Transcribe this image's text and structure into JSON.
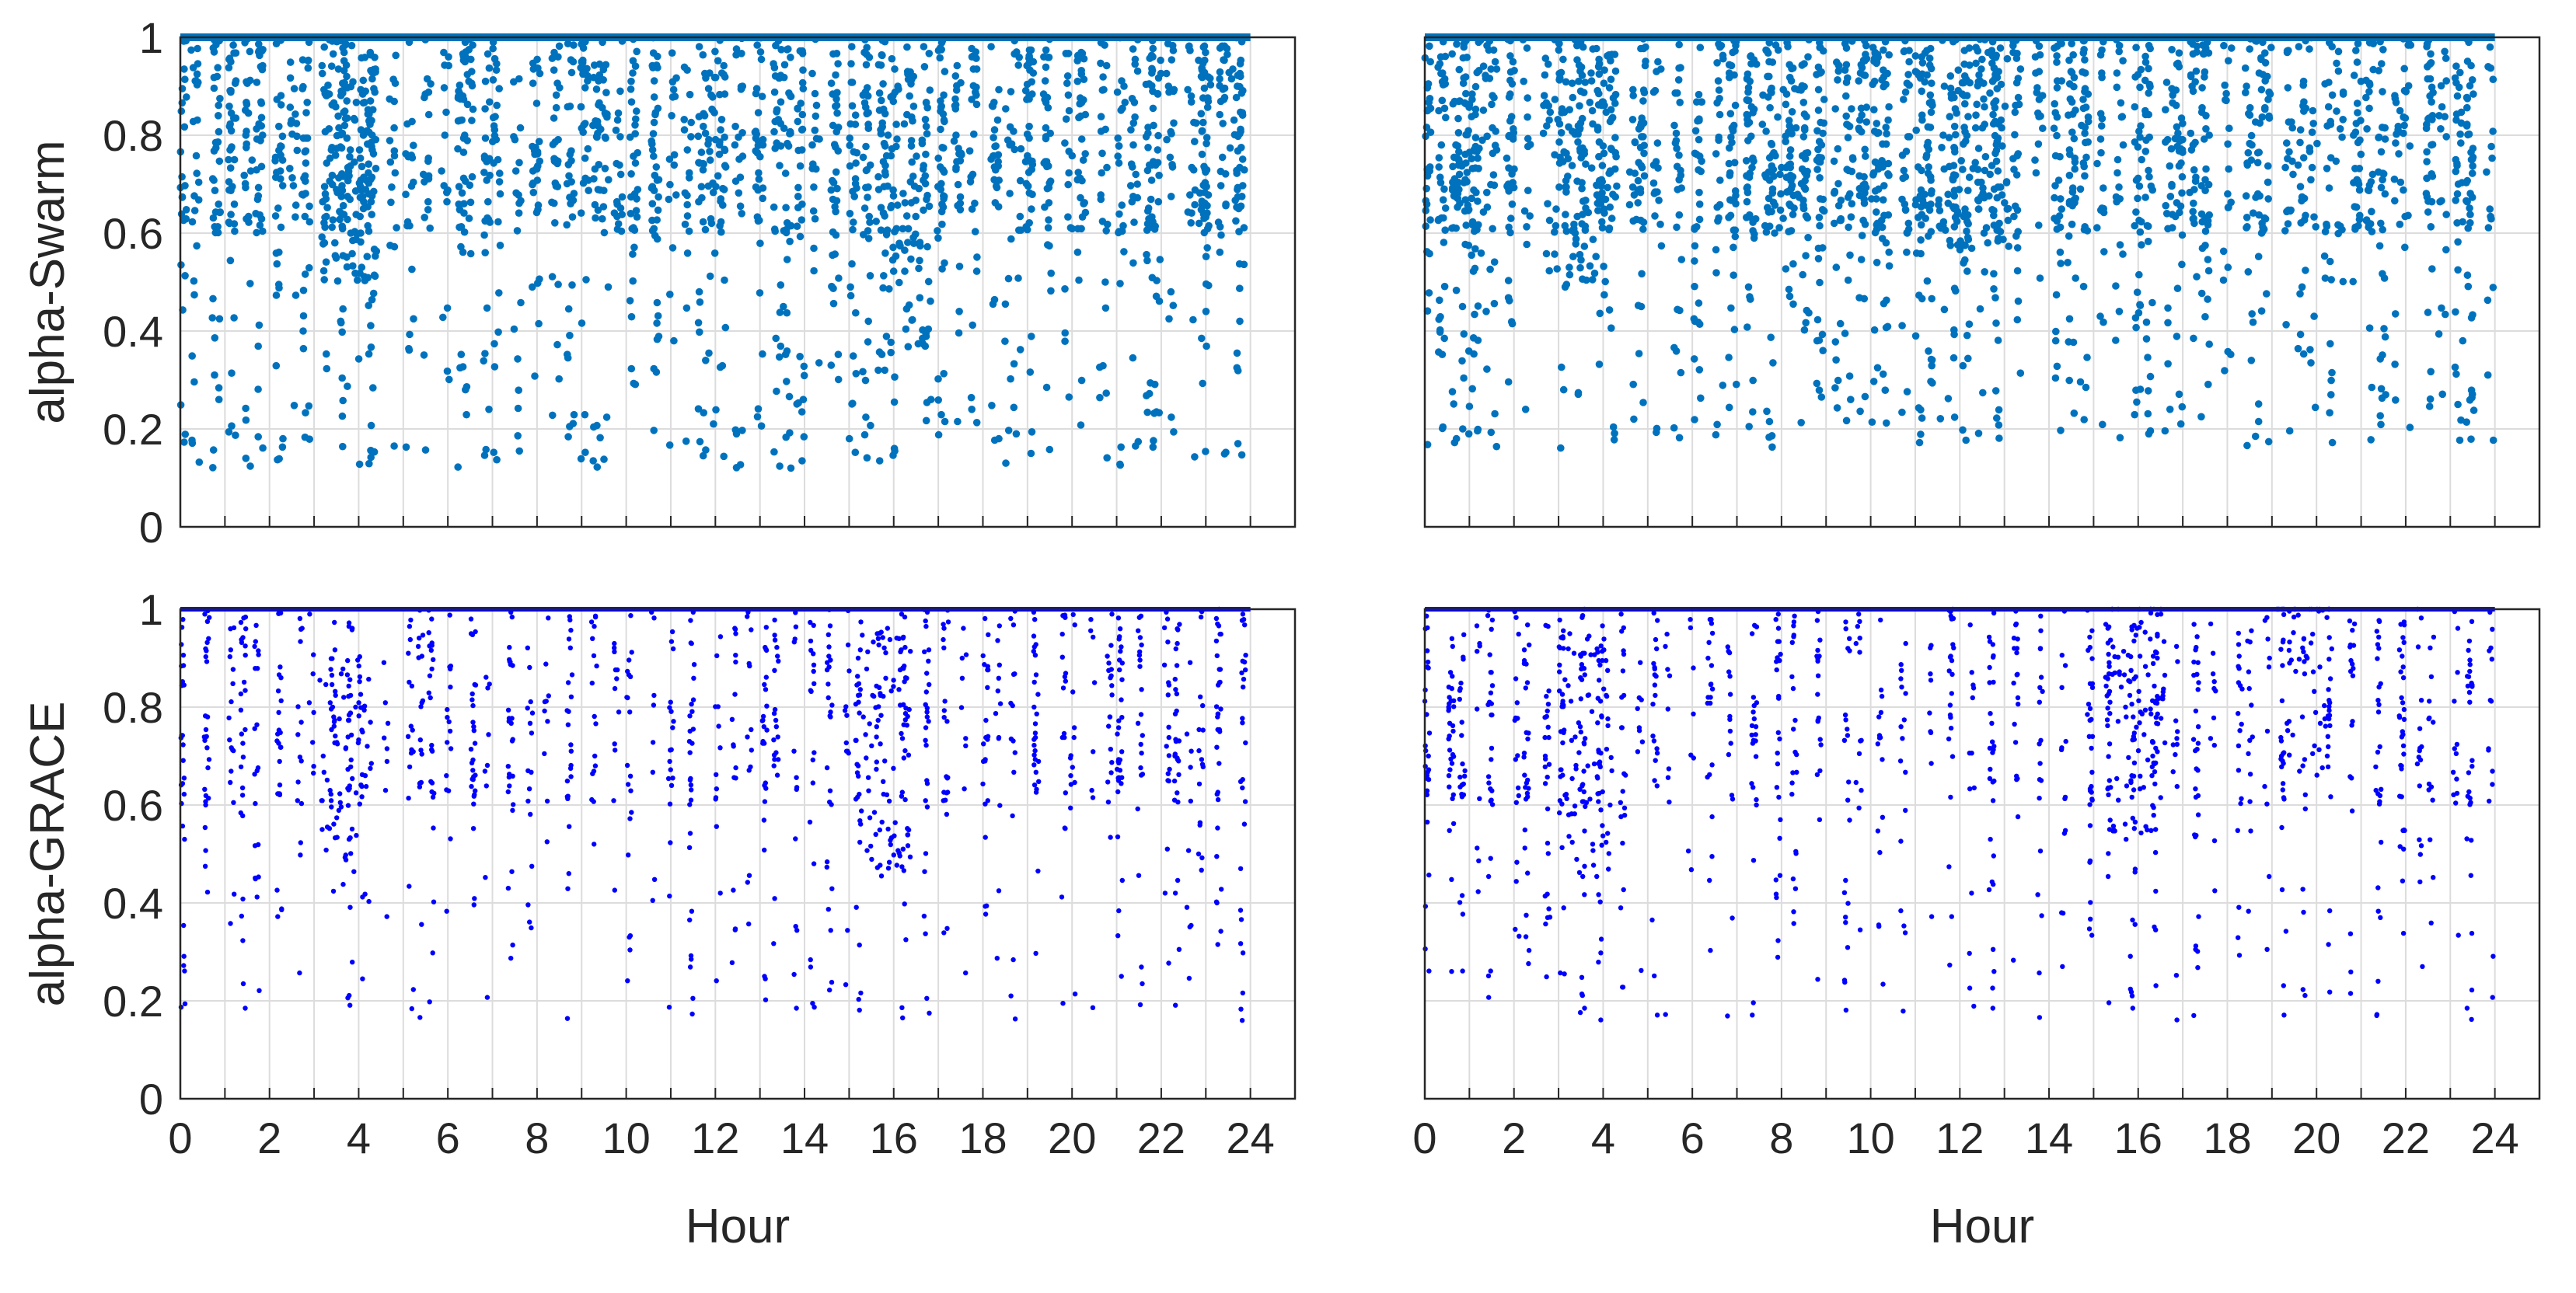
{
  "figure": {
    "x_tick_labels": [
      "0",
      "2",
      "4",
      "6",
      "8",
      "10",
      "12",
      "14",
      "16",
      "18",
      "20",
      "22",
      "24"
    ],
    "y_tick_labels": [
      "0",
      "0.2",
      "0.4",
      "0.6",
      "0.8",
      "1"
    ],
    "colors": {
      "swarm": "#0072BD",
      "grace": "#0000FF",
      "grid": "#DCDCDC",
      "axis": "#262626",
      "text": "#262626"
    }
  },
  "chart_data": [
    {
      "id": "swarm-left",
      "type": "scatter",
      "ylabel": "alpha-Swarm",
      "xlabel": "",
      "xlim": [
        0,
        25
      ],
      "ylim": [
        0,
        1
      ],
      "x_ticks": [],
      "y_ticks": [
        0,
        0.2,
        0.4,
        0.6,
        0.8,
        1
      ],
      "grid": true,
      "series": [
        {
          "color": "#0072BD",
          "marker_size": 4.8,
          "ceiling_value": 1,
          "points": []
        }
      ]
    },
    {
      "id": "swarm-right",
      "type": "scatter",
      "ylabel": "",
      "xlabel": "",
      "xlim": [
        0,
        25
      ],
      "ylim": [
        0,
        1
      ],
      "x_ticks": [],
      "y_ticks": [],
      "grid": true,
      "series": [
        {
          "color": "#0072BD",
          "marker_size": 4.8,
          "ceiling_value": 1,
          "points": []
        }
      ]
    },
    {
      "id": "grace-left",
      "type": "scatter",
      "ylabel": "alpha-GRACE",
      "xlabel": "Hour",
      "xlim": [
        0,
        25
      ],
      "ylim": [
        0,
        1
      ],
      "x_ticks": [
        0,
        2,
        4,
        6,
        8,
        10,
        12,
        14,
        16,
        18,
        20,
        22,
        24
      ],
      "y_ticks": [
        0,
        0.2,
        0.4,
        0.6,
        0.8,
        1
      ],
      "grid": true,
      "series": [
        {
          "color": "#0000FF",
          "marker_size": 3.2,
          "ceiling_value": 1,
          "points": []
        }
      ]
    },
    {
      "id": "grace-right",
      "type": "scatter",
      "ylabel": "",
      "xlabel": "Hour",
      "xlim": [
        0,
        25
      ],
      "ylim": [
        0,
        1
      ],
      "x_ticks": [
        0,
        2,
        4,
        6,
        8,
        10,
        12,
        14,
        16,
        18,
        20,
        22,
        24
      ],
      "y_ticks": [],
      "grid": true,
      "series": [
        {
          "color": "#0000FF",
          "marker_size": 3.2,
          "ceiling_value": 1,
          "points": []
        }
      ]
    }
  ]
}
